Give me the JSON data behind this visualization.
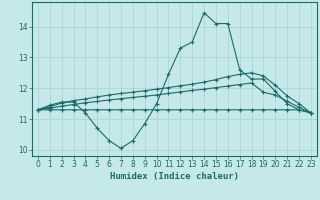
{
  "title": "",
  "xlabel": "Humidex (Indice chaleur)",
  "background_color": "#c5e8e8",
  "grid_color": "#aed4d4",
  "line_color": "#1a6b6b",
  "xlim": [
    -0.5,
    23.5
  ],
  "ylim": [
    9.8,
    14.8
  ],
  "yticks": [
    10,
    11,
    12,
    13,
    14
  ],
  "xticks": [
    0,
    1,
    2,
    3,
    4,
    5,
    6,
    7,
    8,
    9,
    10,
    11,
    12,
    13,
    14,
    15,
    16,
    17,
    18,
    19,
    20,
    21,
    22,
    23
  ],
  "x": [
    0,
    1,
    2,
    3,
    4,
    5,
    6,
    7,
    8,
    9,
    10,
    11,
    12,
    13,
    14,
    15,
    16,
    17,
    18,
    19,
    20,
    21,
    22,
    23
  ],
  "line1": [
    11.3,
    11.45,
    11.55,
    11.55,
    11.2,
    10.7,
    10.3,
    10.05,
    10.3,
    10.85,
    11.5,
    12.45,
    13.3,
    13.5,
    14.45,
    14.1,
    14.1,
    12.6,
    12.3,
    12.3,
    11.9,
    11.5,
    11.3,
    11.2
  ],
  "line2": [
    11.3,
    11.4,
    11.52,
    11.6,
    11.65,
    11.72,
    11.78,
    11.83,
    11.87,
    11.92,
    11.97,
    12.02,
    12.08,
    12.13,
    12.2,
    12.28,
    12.38,
    12.45,
    12.5,
    12.4,
    12.1,
    11.75,
    11.5,
    11.2
  ],
  "line3": [
    11.3,
    11.35,
    11.42,
    11.47,
    11.53,
    11.57,
    11.62,
    11.66,
    11.7,
    11.74,
    11.78,
    11.83,
    11.88,
    11.93,
    11.97,
    12.02,
    12.07,
    12.12,
    12.17,
    11.87,
    11.78,
    11.58,
    11.38,
    11.2
  ],
  "line4": [
    11.3,
    11.3,
    11.3,
    11.3,
    11.3,
    11.3,
    11.3,
    11.3,
    11.3,
    11.3,
    11.3,
    11.3,
    11.3,
    11.3,
    11.3,
    11.3,
    11.3,
    11.3,
    11.3,
    11.3,
    11.3,
    11.3,
    11.3,
    11.2
  ]
}
